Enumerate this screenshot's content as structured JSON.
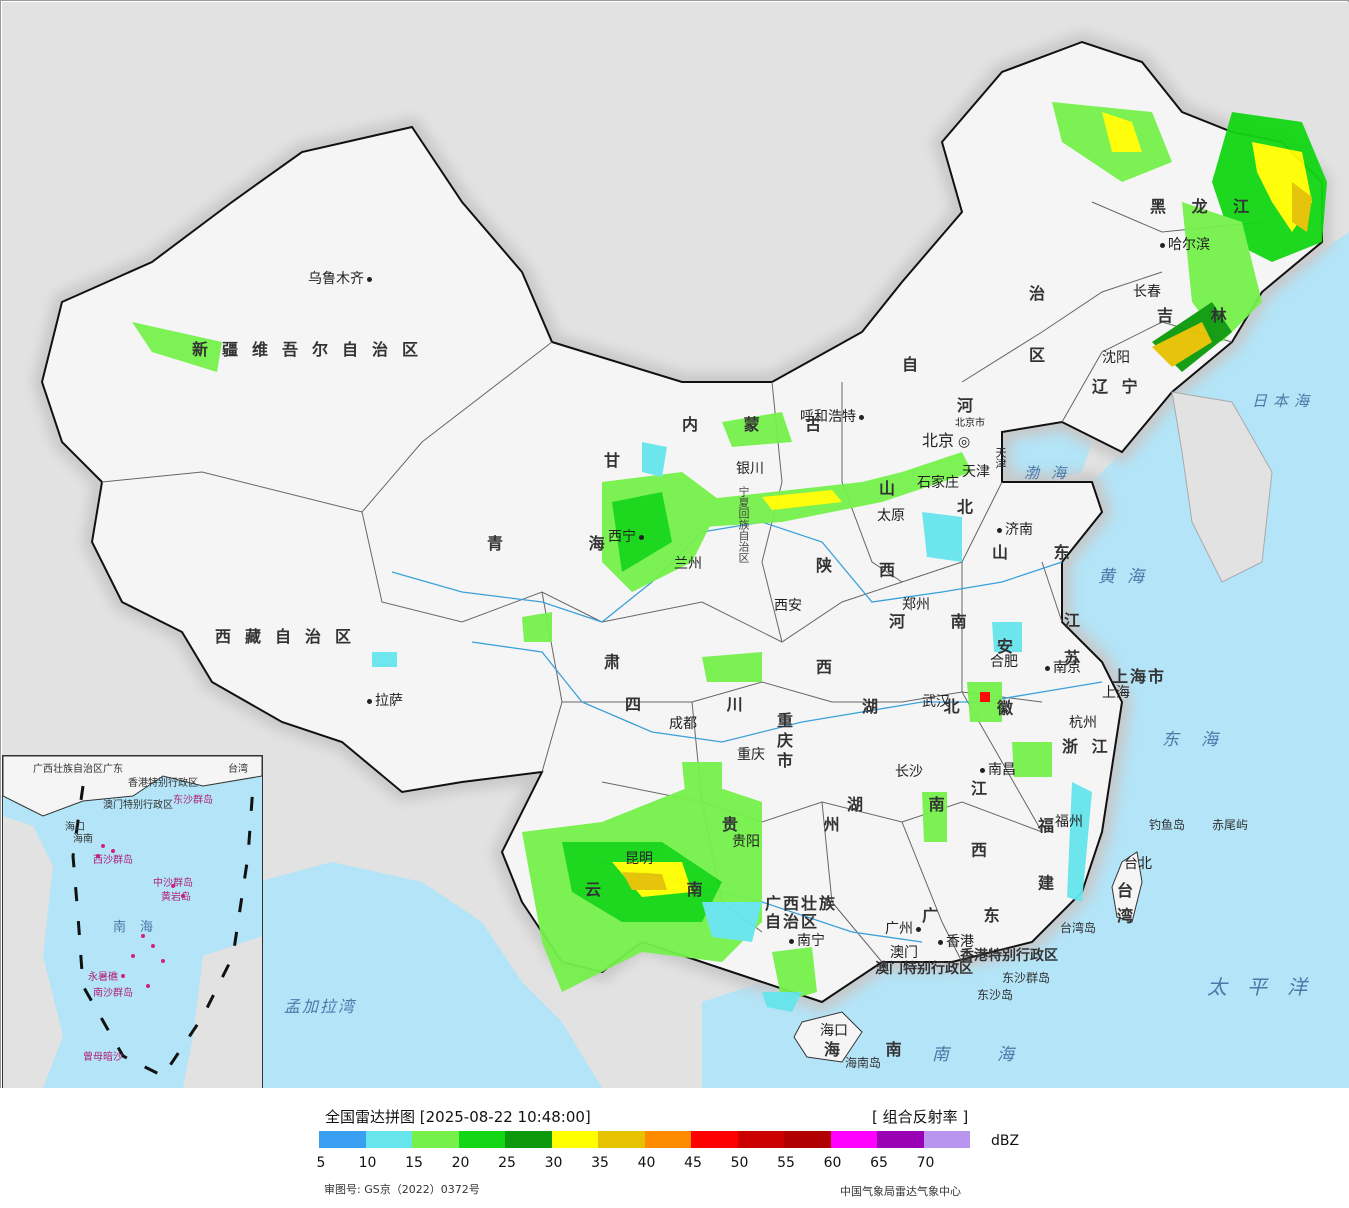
{
  "title": "全国雷达拼图 [2025-08-22 10:48:00]",
  "product": "[ 组合反射率 ]",
  "unit": "dBZ",
  "approval_number": "审图号: GS京（2022）0372号",
  "agency": "中国气象局雷达气象中心",
  "colors": {
    "sea": "#b3e4f7",
    "land": "#f4f4f4",
    "outside": "#e2e2e2",
    "border": "#111111",
    "river": "#3aa0d8"
  },
  "legend": {
    "colors": [
      "#3a9ff0",
      "#66e5ec",
      "#76f14c",
      "#13d714",
      "#0c9a0c",
      "#ffff00",
      "#e6c200",
      "#ff8c00",
      "#ff0000",
      "#cc0000",
      "#b00000",
      "#ff00ff",
      "#9a00b4",
      "#b895ee"
    ],
    "ticks": [
      "5",
      "10",
      "15",
      "20",
      "25",
      "30",
      "35",
      "40",
      "45",
      "50",
      "55",
      "60",
      "65",
      "70"
    ]
  },
  "provinces": [
    {
      "id": "xinjiang",
      "text": "新疆维吾尔自治区"
    },
    {
      "id": "xizang",
      "text": "西藏自治区"
    },
    {
      "id": "qinghai",
      "text": "青 海"
    },
    {
      "id": "neimenggu",
      "text": "内 蒙 古"
    },
    {
      "id": "heilongjiang",
      "text": "黑 龙 江"
    },
    {
      "id": "jilin",
      "text": "吉 林"
    },
    {
      "id": "liaoning",
      "text": "辽 宁"
    },
    {
      "id": "hebei",
      "text": "河 北"
    },
    {
      "id": "shanxi",
      "text": "山 西"
    },
    {
      "id": "shandong",
      "text": "山 东"
    },
    {
      "id": "henan",
      "text": "河 南"
    },
    {
      "id": "shaanxi",
      "text": "陕 西"
    },
    {
      "id": "gansu",
      "text": "甘 肃"
    },
    {
      "id": "ningxia",
      "text": "宁夏回族自治区"
    },
    {
      "id": "sichuan",
      "text": "四 川"
    },
    {
      "id": "chongqing",
      "text": "重庆市"
    },
    {
      "id": "hubei",
      "text": "湖 北"
    },
    {
      "id": "hunan",
      "text": "湖 南"
    },
    {
      "id": "jiangxi",
      "text": "江 西"
    },
    {
      "id": "anhui",
      "text": "安 徽"
    },
    {
      "id": "jiangsu",
      "text": "江 苏"
    },
    {
      "id": "zhejiang",
      "text": "浙 江"
    },
    {
      "id": "fujian",
      "text": "福 建"
    },
    {
      "id": "guangdong",
      "text": "广 东"
    },
    {
      "id": "guangxi",
      "text": "广西壮族自治区"
    },
    {
      "id": "guizhou",
      "text": "贵 州"
    },
    {
      "id": "yunnan",
      "text": "云 南"
    },
    {
      "id": "hainan",
      "text": "海 南"
    },
    {
      "id": "taiwan",
      "text": "台 湾"
    },
    {
      "id": "shanghai",
      "text": "上海市"
    },
    {
      "id": "tianjin",
      "text": "天津"
    },
    {
      "id": "beijing",
      "text": "北京市"
    },
    {
      "id": "hongkong",
      "text": "香港特别行政区"
    },
    {
      "id": "macau",
      "text": "澳门特别行政区"
    },
    {
      "id": "neimenggu2",
      "text": "治 区"
    },
    {
      "id": "zizhi",
      "text": "自"
    }
  ],
  "cities": [
    "乌鲁木齐",
    "拉萨",
    "西宁",
    "兰州",
    "银川",
    "呼和浩特",
    "北京",
    "天津",
    "石家庄",
    "太原",
    "济南",
    "郑州",
    "西安",
    "成都",
    "重庆",
    "武汉",
    "合肥",
    "南京",
    "上海",
    "杭州",
    "长沙",
    "南昌",
    "福州",
    "台北",
    "广州",
    "澳门",
    "香港",
    "南宁",
    "海口",
    "贵阳",
    "昆明",
    "沈阳",
    "长春",
    "哈尔滨"
  ],
  "seas": [
    "日本海",
    "渤海",
    "黄海",
    "东海",
    "太平洋",
    "南海",
    "孟加拉湾"
  ],
  "islands": [
    "钓鱼岛",
    "赤尾屿",
    "台湾岛",
    "东沙群岛",
    "东沙岛",
    "海南岛"
  ],
  "inset": {
    "labels": [
      "广西壮族自治区",
      "广东",
      "台湾",
      "香港特别行政区",
      "澳门特别行政区",
      "东沙群岛",
      "海口",
      "海南",
      "西沙群岛",
      "中沙群岛",
      "黄岩岛",
      "南海",
      "永暑礁",
      "南沙群岛",
      "曾母暗沙"
    ]
  }
}
